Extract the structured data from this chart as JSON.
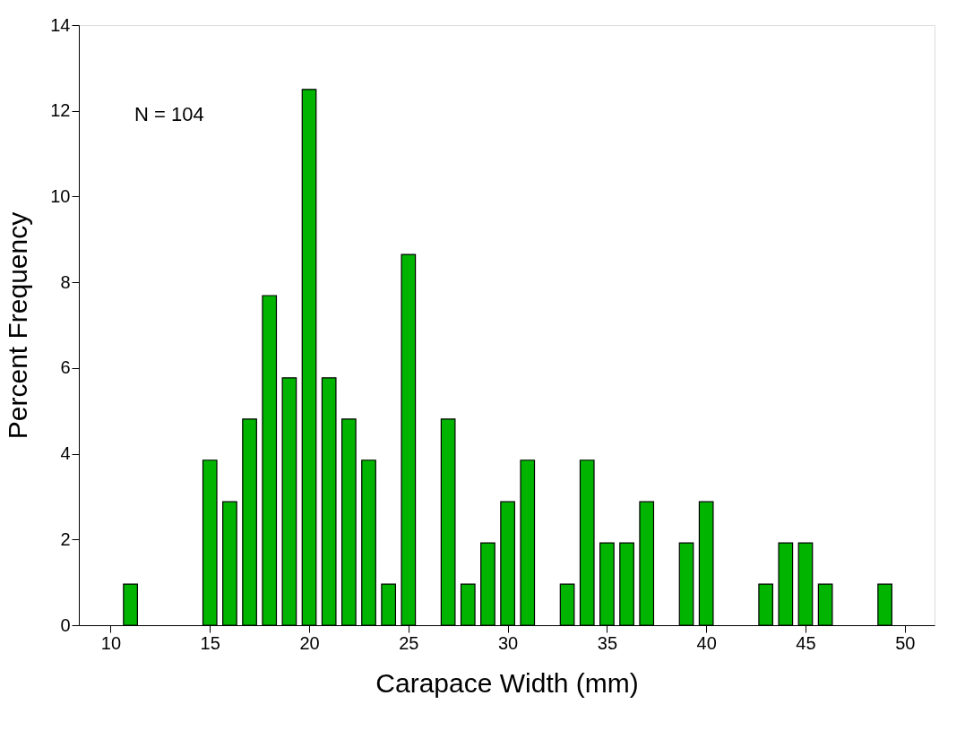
{
  "chart_data": {
    "type": "bar",
    "xlabel": "Carapace Width (mm)",
    "ylabel": "Percent Frequency",
    "annotations": [
      "N = 104"
    ],
    "x": [
      11,
      15,
      16,
      17,
      18,
      19,
      20,
      21,
      22,
      23,
      24,
      25,
      27,
      28,
      29,
      30,
      31,
      33,
      34,
      35,
      36,
      37,
      39,
      40,
      43,
      44,
      45,
      46,
      49
    ],
    "values": [
      0.96,
      3.85,
      2.88,
      4.81,
      7.69,
      5.77,
      12.5,
      5.77,
      4.81,
      3.85,
      0.96,
      8.65,
      4.81,
      0.96,
      1.92,
      2.88,
      3.85,
      0.96,
      3.85,
      1.92,
      1.92,
      2.88,
      1.92,
      2.88,
      0.96,
      1.92,
      1.92,
      0.96,
      0.96
    ],
    "color": "#00b400",
    "xlim": [
      8.4,
      51.5
    ],
    "xticks": [
      10,
      15,
      20,
      25,
      30,
      35,
      40,
      45,
      50
    ],
    "ylim": [
      0,
      14
    ],
    "yticks": [
      0,
      2,
      4,
      6,
      8,
      10,
      12,
      14
    ],
    "grid": false
  }
}
